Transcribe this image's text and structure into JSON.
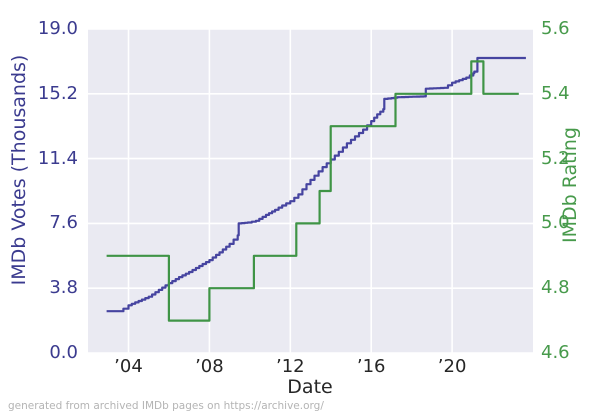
{
  "figure": {
    "footer": "generated from archived IMDb pages on https://archive.org/"
  },
  "chart_data": {
    "type": "line",
    "title": "",
    "xlabel": "Date",
    "x_range": [
      2002,
      2024
    ],
    "x_ticks": [
      {
        "value": 2004,
        "label": "’04"
      },
      {
        "value": 2008,
        "label": "’08"
      },
      {
        "value": 2012,
        "label": "’12"
      },
      {
        "value": 2016,
        "label": "’16"
      },
      {
        "value": 2020,
        "label": "’20"
      }
    ],
    "grid": true,
    "legend": "none",
    "plot_bg": "#eaeaf2",
    "grid_color": "#ffffff",
    "x_tick_color": "#262626",
    "left_axis": {
      "label": "IMDb Votes (Thousands)",
      "range": [
        0.0,
        19.0
      ],
      "ticks": [
        0.0,
        3.8,
        7.6,
        11.4,
        15.2,
        19.0
      ],
      "tick_labels": [
        "0.0",
        "3.8",
        "7.6",
        "11.4",
        "15.2",
        "19.0"
      ],
      "color": "#3b3b8f"
    },
    "right_axis": {
      "label": "IMDb Rating",
      "range": [
        4.6,
        5.6
      ],
      "ticks": [
        4.6,
        4.8,
        5.0,
        5.2,
        5.4,
        5.6
      ],
      "tick_labels": [
        "4.6",
        "4.8",
        "5.0",
        "5.2",
        "5.4",
        "5.6"
      ],
      "color": "#479a4b"
    },
    "series": [
      {
        "name": "IMDb Votes (Thousands)",
        "axis": "left",
        "color": "#4644a0",
        "style": "staircase",
        "points": [
          [
            2002.92,
            2.45
          ],
          [
            2003.6,
            2.45
          ],
          [
            2003.75,
            2.6
          ],
          [
            2004.0,
            2.8
          ],
          [
            2004.5,
            3.05
          ],
          [
            2005.0,
            3.3
          ],
          [
            2005.5,
            3.7
          ],
          [
            2006.0,
            4.1
          ],
          [
            2006.5,
            4.45
          ],
          [
            2007.0,
            4.75
          ],
          [
            2007.5,
            5.1
          ],
          [
            2008.0,
            5.45
          ],
          [
            2008.5,
            5.9
          ],
          [
            2009.0,
            6.4
          ],
          [
            2009.4,
            6.9
          ],
          [
            2009.45,
            7.6
          ],
          [
            2009.9,
            7.65
          ],
          [
            2010.3,
            7.75
          ],
          [
            2010.8,
            8.1
          ],
          [
            2011.25,
            8.4
          ],
          [
            2011.6,
            8.65
          ],
          [
            2012.0,
            8.9
          ],
          [
            2012.4,
            9.3
          ],
          [
            2012.8,
            9.9
          ],
          [
            2013.2,
            10.4
          ],
          [
            2013.6,
            10.9
          ],
          [
            2014.0,
            11.35
          ],
          [
            2014.4,
            11.8
          ],
          [
            2014.8,
            12.3
          ],
          [
            2015.2,
            12.7
          ],
          [
            2015.6,
            13.1
          ],
          [
            2016.0,
            13.6
          ],
          [
            2016.3,
            14.0
          ],
          [
            2016.6,
            14.3
          ],
          [
            2016.65,
            14.9
          ],
          [
            2017.0,
            14.95
          ],
          [
            2017.3,
            15.0
          ],
          [
            2018.6,
            15.05
          ],
          [
            2018.7,
            15.5
          ],
          [
            2019.6,
            15.55
          ],
          [
            2020.0,
            15.85
          ],
          [
            2020.7,
            16.15
          ],
          [
            2021.05,
            16.4
          ],
          [
            2021.1,
            16.5
          ],
          [
            2021.25,
            17.3
          ],
          [
            2023.65,
            17.3
          ]
        ]
      },
      {
        "name": "IMDb Rating",
        "axis": "right",
        "color": "#3f9446",
        "style": "steps-exact",
        "points": [
          [
            2002.92,
            4.9
          ],
          [
            2006.0,
            4.9
          ],
          [
            2006.0,
            4.7
          ],
          [
            2008.0,
            4.7
          ],
          [
            2008.0,
            4.8
          ],
          [
            2010.2,
            4.8
          ],
          [
            2010.2,
            4.9
          ],
          [
            2012.3,
            4.9
          ],
          [
            2012.3,
            5.0
          ],
          [
            2013.45,
            5.0
          ],
          [
            2013.45,
            5.1
          ],
          [
            2014.0,
            5.1
          ],
          [
            2014.0,
            5.3
          ],
          [
            2017.2,
            5.3
          ],
          [
            2017.2,
            5.4
          ],
          [
            2020.95,
            5.4
          ],
          [
            2020.95,
            5.5
          ],
          [
            2021.55,
            5.5
          ],
          [
            2021.55,
            5.4
          ],
          [
            2023.3,
            5.4
          ]
        ]
      }
    ]
  }
}
